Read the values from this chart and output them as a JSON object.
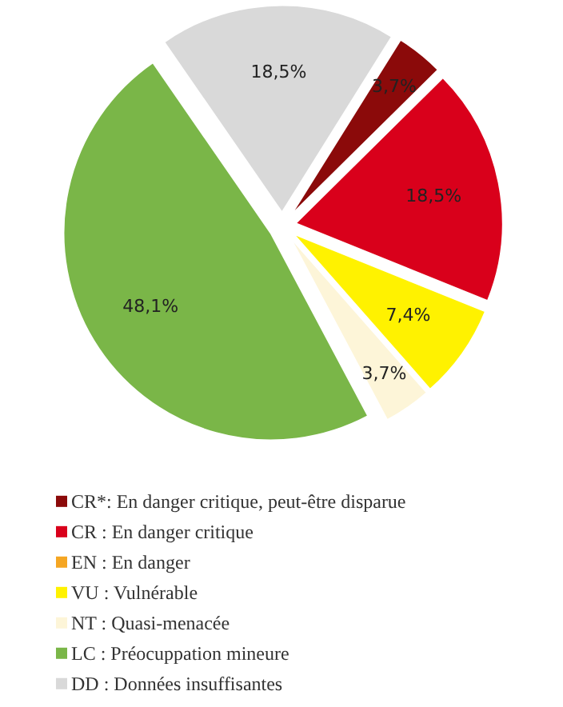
{
  "chart_data": {
    "type": "pie",
    "categories": [
      "CR*: En danger critique, peut-être disparue",
      "CR : En danger critique",
      "EN : En danger",
      "VU : Vulnérable",
      "NT : Quasi-menacée",
      "LC : Préocuppation mineure",
      "DD : Données insuffisantes"
    ],
    "values": [
      3.7,
      18.5,
      0,
      7.4,
      3.7,
      48.1,
      18.5
    ],
    "colors": [
      "#8b0a0a",
      "#d9001b",
      "#f5a623",
      "#fff200",
      "#fdf5d8",
      "#7ab648",
      "#d9d9d9"
    ],
    "value_labels": [
      "3,7%",
      "18,5%",
      null,
      "7,4%",
      "3,7%",
      "48,1%",
      "18,5%"
    ],
    "legend": "bottom"
  }
}
